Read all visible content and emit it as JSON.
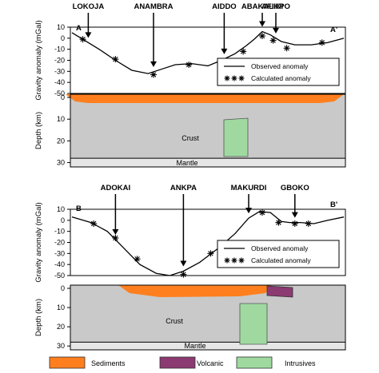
{
  "chart_data": [
    {
      "type": "line",
      "panel_id": "A",
      "profile_start": "A",
      "profile_end": "A'",
      "ylabel": "Gravity anomaly (mGal)",
      "ylim": [
        -50,
        10
      ],
      "yticks": [
        "10",
        "0",
        "-10",
        "-20",
        "-30",
        "-40",
        "-50"
      ],
      "x_domain": [
        0,
        100
      ],
      "locations": [
        "LOKOJA",
        "ANAMBRA",
        "AIDDO",
        "ABAKALIKI",
        "AFIKPO"
      ],
      "location_x": [
        6,
        30,
        56,
        70,
        75
      ],
      "legend": [
        "Observed anomaly",
        "Calculated anomaly"
      ],
      "series": [
        {
          "name": "Observed anomaly",
          "x": [
            0,
            4,
            10,
            16,
            22,
            28,
            33,
            38,
            44,
            50,
            55,
            60,
            64,
            67,
            70,
            73,
            77,
            82,
            88,
            94,
            100
          ],
          "y": [
            5,
            -1,
            -10,
            -20,
            -29,
            -32,
            -28,
            -24,
            -23,
            -25,
            -20,
            -14,
            -7,
            -1,
            6,
            3,
            -3,
            -6,
            -6,
            -4,
            0
          ]
        },
        {
          "name": "Calculated anomaly",
          "x": [
            4,
            16,
            30,
            43,
            56,
            63,
            70,
            74,
            79,
            92
          ],
          "y": [
            -1,
            -19,
            -33,
            -24,
            -26,
            -12,
            2,
            -2,
            -9,
            -4
          ]
        }
      ],
      "section": {
        "units": [
          "Crust",
          "Mantle"
        ],
        "ylabel": "Depth (km)",
        "yticks": [
          "0",
          "10",
          "20",
          "30"
        ]
      }
    },
    {
      "type": "line",
      "panel_id": "B",
      "profile_start": "B",
      "profile_end": "B'",
      "ylabel": "Gravity anomaly (mGal)",
      "ylim": [
        -50,
        10
      ],
      "yticks": [
        "10",
        "0",
        "-10",
        "-20",
        "-30",
        "-40",
        "-50"
      ],
      "x_domain": [
        0,
        100
      ],
      "locations": [
        "ADOKAI",
        "ANKPA",
        "MAKURDI",
        "GBOKO"
      ],
      "location_x": [
        16,
        41,
        65,
        82
      ],
      "legend": [
        "Observed anomaly",
        "Calculated anomaly"
      ],
      "series": [
        {
          "name": "Observed anomaly",
          "x": [
            0,
            7,
            13,
            19,
            25,
            31,
            36,
            41,
            47,
            54,
            60,
            65,
            69,
            73,
            77,
            80,
            84,
            89,
            94,
            100
          ],
          "y": [
            3,
            -2,
            -10,
            -25,
            -40,
            -48,
            -50,
            -46,
            -38,
            -25,
            -12,
            2,
            8,
            7,
            -1,
            -2,
            -2,
            -3,
            0,
            3
          ]
        },
        {
          "name": "Calculated anomaly",
          "x": [
            8,
            16,
            24,
            41,
            51,
            70,
            76,
            82,
            87
          ],
          "y": [
            -3,
            -16,
            -35,
            -49,
            -30,
            7,
            -2,
            -3,
            -3
          ]
        }
      ],
      "section": {
        "units": [
          "Crust",
          "Mantle"
        ],
        "ylabel": "Depth (km)",
        "yticks": [
          "0",
          "10",
          "20",
          "30"
        ]
      }
    }
  ],
  "legend_bottom": [
    {
      "label": "Sediments",
      "color": "#ff7f1e"
    },
    {
      "label": "Volcanic",
      "color": "#8b3a72"
    },
    {
      "label": "Intrusives",
      "color": "#9fd9a0"
    }
  ],
  "colors": {
    "crust": "#c9c9c9",
    "mantle": "#e6e6e6",
    "sediments": "#ff7f1e",
    "volcanic": "#8b3a72",
    "intrusives": "#9fd9a0"
  }
}
